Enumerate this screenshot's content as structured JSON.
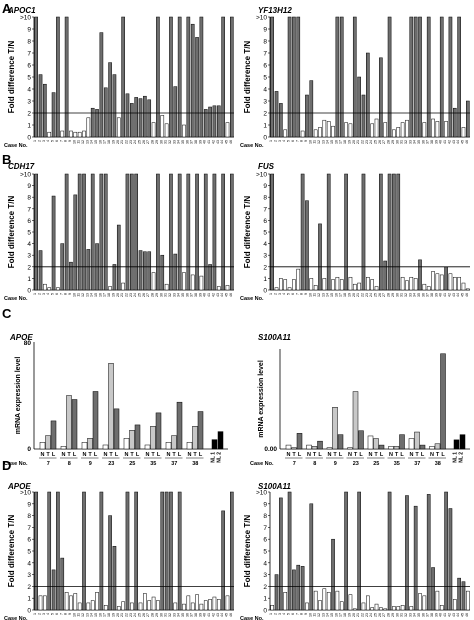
{
  "y_axis_labels": {
    "fold": "Fold difference T/N",
    "mrna": "mRNA expression level"
  },
  "case_no_label": "Case No.",
  "colors": {
    "tumor_dark": "#6e6e6e",
    "light_gray": "#c8c8c8",
    "white": "#ffffff",
    "normal_liver": "#000000",
    "stroke": "#000000"
  },
  "chart_data": [
    {
      "panel": "A",
      "title": "APOC1",
      "type": "bar",
      "ylim": [
        0,
        10
      ],
      "top_tick_label": ">10",
      "yticks": [
        "0",
        "1",
        "2",
        "3",
        "4",
        "5",
        "6",
        "7",
        "8",
        "9",
        ">10"
      ],
      "threshold": 2,
      "case_numbers": [
        "1",
        "2",
        "3",
        "4",
        "5",
        "6",
        "7",
        "8",
        "9",
        "10",
        "11",
        "12",
        "13",
        "14",
        "15",
        "16",
        "17",
        "18",
        "19",
        "20",
        "21",
        "22",
        "23",
        "24",
        "25",
        "26",
        "27",
        "28",
        "29",
        "30",
        "31",
        "32",
        "33",
        "34",
        "35",
        "36",
        "37",
        "38",
        "39",
        "40",
        "41",
        "42",
        "43",
        "44",
        "45",
        "46"
      ],
      "values": [
        10,
        5.2,
        4.4,
        0.4,
        3.7,
        10,
        0.5,
        10,
        0.5,
        0.4,
        0.4,
        0.5,
        1.6,
        2.4,
        2.3,
        8.7,
        4.1,
        6.2,
        5.2,
        1.6,
        10,
        3.6,
        2.8,
        3.3,
        3.2,
        3.4,
        3.1,
        1.2,
        10,
        1.8,
        1.1,
        10,
        4.2,
        10,
        1,
        10,
        9.4,
        8.3,
        10,
        2.3,
        2.5,
        2.6,
        2.6,
        10,
        1.2,
        10
      ]
    },
    {
      "panel": "A",
      "title": "YF13H12",
      "type": "bar",
      "ylim": [
        0,
        10
      ],
      "top_tick_label": ">10",
      "yticks": [
        "0",
        "1",
        "2",
        "3",
        "4",
        "5",
        "6",
        "7",
        "8",
        "9",
        ">10"
      ],
      "threshold": 2,
      "case_numbers": [
        "1",
        "2",
        "3",
        "4",
        "5",
        "6",
        "7",
        "8",
        "9",
        "10",
        "11",
        "12",
        "13",
        "14",
        "15",
        "16",
        "17",
        "18",
        "19",
        "20",
        "21",
        "22",
        "23",
        "24",
        "25",
        "26",
        "27",
        "28",
        "29",
        "30",
        "31",
        "32",
        "33",
        "34",
        "35",
        "36",
        "37",
        "38",
        "39",
        "40",
        "41",
        "42",
        "43",
        "44",
        "45",
        "46"
      ],
      "values": [
        10,
        3.8,
        2.8,
        0.6,
        10,
        10,
        10,
        0.5,
        3.5,
        4.7,
        0.6,
        0.8,
        1.4,
        1.3,
        0.9,
        10,
        10,
        1.2,
        1.1,
        10,
        5,
        3.5,
        7,
        1.1,
        1.5,
        6.6,
        1.2,
        10,
        0.6,
        0.8,
        1.2,
        1.4,
        10,
        10,
        10,
        1.2,
        10,
        1.5,
        1.3,
        10,
        1.3,
        10,
        2.4,
        10,
        0.8,
        3
      ]
    },
    {
      "panel": "B",
      "title": "CDH17",
      "type": "bar",
      "ylim": [
        0,
        10
      ],
      "top_tick_label": ">10",
      "yticks": [
        "0",
        "1",
        "2",
        "3",
        "4",
        "5",
        "6",
        "7",
        "8",
        "9",
        ">10"
      ],
      "threshold": 2,
      "case_numbers": [
        "1",
        "2",
        "3",
        "4",
        "5",
        "6",
        "7",
        "8",
        "9",
        "10",
        "11",
        "12",
        "13",
        "14",
        "15",
        "16",
        "17",
        "18",
        "19",
        "20",
        "21",
        "22",
        "23",
        "24",
        "25",
        "26",
        "27",
        "28",
        "29",
        "30",
        "31",
        "32",
        "33",
        "34",
        "35",
        "36",
        "37",
        "38",
        "39",
        "40",
        "41",
        "42",
        "43",
        "44",
        "45",
        "46"
      ],
      "values": [
        10,
        3.4,
        0.5,
        0.2,
        8.1,
        0.2,
        4,
        10,
        2.4,
        8.2,
        10,
        10,
        3.5,
        10,
        4,
        10,
        10,
        0.3,
        2.2,
        5.6,
        0.6,
        10,
        10,
        10,
        3.4,
        3.3,
        3.3,
        1.5,
        10,
        3,
        0.5,
        10,
        3.1,
        10,
        1.5,
        10,
        1.3,
        10,
        1.2,
        10,
        2.2,
        10,
        0.3,
        10,
        0.4,
        10
      ]
    },
    {
      "panel": "B",
      "title": "FUS",
      "type": "bar",
      "ylim": [
        0,
        10
      ],
      "top_tick_label": ">10",
      "yticks": [
        "0",
        "1",
        "2",
        "3",
        "4",
        "5",
        "6",
        "7",
        "8",
        "9",
        ">10"
      ],
      "threshold": 2,
      "case_numbers": [
        "1",
        "2",
        "3",
        "4",
        "5",
        "6",
        "7",
        "8",
        "9",
        "10",
        "11",
        "12",
        "13",
        "14",
        "15",
        "16",
        "17",
        "18",
        "19",
        "20",
        "21",
        "22",
        "23",
        "24",
        "25",
        "26",
        "27",
        "28",
        "29",
        "30",
        "31",
        "32",
        "33",
        "34",
        "35",
        "36",
        "37",
        "38",
        "39",
        "40",
        "41",
        "42",
        "43",
        "44",
        "45",
        "46"
      ],
      "values": [
        10,
        0.2,
        1,
        0.9,
        0.2,
        0.9,
        1.8,
        10,
        7.7,
        1,
        0.4,
        5.7,
        1,
        10,
        0.9,
        1.1,
        0.9,
        10,
        1.1,
        0.5,
        0.6,
        10,
        1.1,
        0.9,
        0.3,
        10,
        2.5,
        10,
        10,
        10,
        1.1,
        0.8,
        1.1,
        1,
        2.6,
        0.5,
        0.3,
        1.6,
        1.4,
        1.3,
        2,
        1.4,
        1.1,
        1.1,
        0.6,
        0.1
      ]
    },
    {
      "panel": "C",
      "title": "APOE",
      "type": "bar",
      "ymax": 80,
      "yticks": [
        "80",
        "0"
      ],
      "groups": [
        "7",
        "8",
        "9",
        "23",
        "25",
        "35",
        "37",
        "38"
      ],
      "tnl_labels": [
        "N",
        "T",
        "L"
      ],
      "values": [
        [
          5,
          10,
          21
        ],
        [
          2,
          40,
          37
        ],
        [
          5,
          8,
          43
        ],
        [
          3,
          64,
          30
        ],
        [
          8,
          14,
          18
        ],
        [
          3,
          17,
          27
        ],
        [
          5,
          10,
          35
        ],
        [
          5,
          17,
          28
        ]
      ],
      "normal_liver_labels": [
        "NL 1",
        "NL 2"
      ],
      "normal_liver_values": [
        7,
        13
      ]
    },
    {
      "panel": "C",
      "title": "S100A11",
      "type": "bar",
      "ymax": null,
      "yticks": [
        "0.00"
      ],
      "groups": [
        "7",
        "8",
        "9",
        "23",
        "25",
        "35",
        "37",
        "38"
      ],
      "tnl_labels": [
        "N",
        "T",
        "L"
      ],
      "values": [
        [
          3,
          1,
          12
        ],
        [
          3,
          2,
          6
        ],
        [
          1,
          32,
          11
        ],
        [
          1,
          44,
          14
        ],
        [
          10,
          8,
          3
        ],
        [
          2,
          2,
          11
        ],
        [
          8,
          13,
          3
        ],
        [
          2,
          4,
          73
        ]
      ],
      "normal_liver_labels": [
        "NL 1",
        "NL 2"
      ],
      "normal_liver_values": [
        7,
        11
      ]
    },
    {
      "panel": "D",
      "title": "APOE",
      "type": "bar",
      "ylim": [
        0,
        10
      ],
      "top_tick_label": ">10",
      "yticks": [
        "0",
        "1",
        "2",
        "3",
        "4",
        "5",
        "6",
        "7",
        "8",
        "9",
        ">10"
      ],
      "threshold": 2,
      "case_numbers": [
        "1",
        "2",
        "3",
        "4",
        "5",
        "6",
        "7",
        "8",
        "9",
        "10",
        "11",
        "12",
        "13",
        "14",
        "15",
        "16",
        "17",
        "18",
        "19",
        "20",
        "21",
        "22",
        "23",
        "24",
        "25",
        "26",
        "27",
        "28",
        "29",
        "30",
        "31",
        "32",
        "33",
        "34",
        "35",
        "36",
        "37",
        "38",
        "39",
        "40",
        "41",
        "42",
        "43",
        "44",
        "45",
        "46"
      ],
      "values": [
        10,
        1.2,
        1.2,
        10,
        3.4,
        10,
        4.4,
        1.5,
        1.2,
        1.4,
        0.6,
        10,
        0.6,
        0.8,
        1.5,
        10,
        0.4,
        8,
        5.4,
        0.3,
        0.7,
        10,
        0.6,
        10,
        0.6,
        1.4,
        0.8,
        1.1,
        0.8,
        10,
        10,
        10,
        0.6,
        10,
        0.5,
        1.2,
        0.6,
        1.3,
        0.5,
        0.8,
        0.9,
        1.1,
        0.9,
        8.4,
        1.2,
        10
      ]
    },
    {
      "panel": "D",
      "title": "S100A11",
      "type": "bar",
      "ylim": [
        0,
        10
      ],
      "top_tick_label": ">10",
      "yticks": [
        "0",
        "1",
        "2",
        "3",
        "4",
        "5",
        "6",
        "7",
        "8",
        "9",
        ">10"
      ],
      "threshold": 2,
      "case_numbers": [
        "1",
        "2",
        "3",
        "4",
        "5",
        "6",
        "7",
        "8",
        "9",
        "10",
        "11",
        "12",
        "13",
        "14",
        "15",
        "16",
        "17",
        "18",
        "19",
        "20",
        "21",
        "22",
        "23",
        "24",
        "25",
        "26",
        "27",
        "28",
        "29",
        "30",
        "31",
        "32",
        "33",
        "34",
        "35",
        "36",
        "37",
        "38",
        "39",
        "40",
        "41",
        "42",
        "43",
        "44",
        "45",
        "46"
      ],
      "values": [
        0.4,
        3,
        9.5,
        1.5,
        10,
        3.4,
        3.8,
        3.7,
        0.6,
        9,
        1.6,
        0.8,
        1.8,
        1.5,
        6,
        1.6,
        0.7,
        10,
        1.3,
        0.1,
        10,
        0.6,
        1.2,
        0.2,
        0.5,
        0.2,
        0.1,
        10,
        0.3,
        0.3,
        0.4,
        9.7,
        0.3,
        8.8,
        1.4,
        1.2,
        9.8,
        3.6,
        1.6,
        0.4,
        10,
        8.6,
        0.9,
        2.7,
        2.4,
        1.6
      ]
    }
  ],
  "panels": [
    {
      "letter": "A"
    },
    {
      "letter": "B"
    },
    {
      "letter": "C"
    },
    {
      "letter": "D"
    }
  ]
}
